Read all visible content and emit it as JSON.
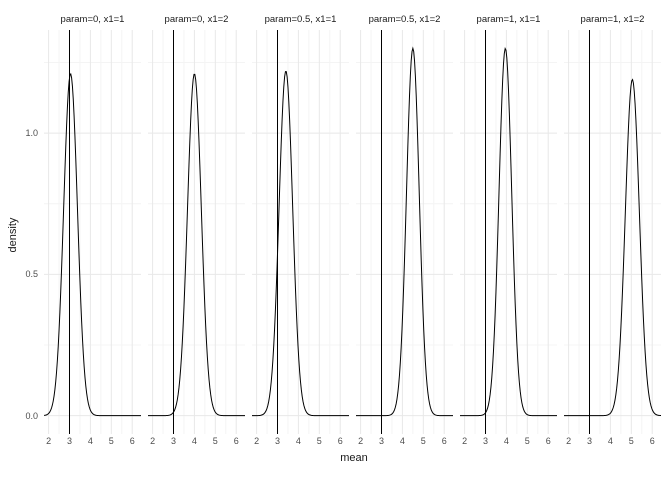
{
  "chart_data": {
    "type": "line",
    "title": "",
    "xlabel": "mean",
    "ylabel": "density",
    "x_ticks": [
      2,
      3,
      4,
      5,
      6
    ],
    "x_tick_labels": [
      "2",
      "3",
      "4",
      "5",
      "6"
    ],
    "x_minor": [
      2.5,
      3.5,
      4.5,
      5.5
    ],
    "y_ticks": [
      0.0,
      0.5,
      1.0
    ],
    "y_tick_labels": [
      "0.0",
      "0.5",
      "1.0"
    ],
    "y_minor": [
      0.25,
      0.75,
      1.25
    ],
    "xlim": [
      1.78,
      6.42
    ],
    "ylim": [
      -0.065,
      1.365
    ],
    "grid": true,
    "legend": "none",
    "vline_x": 3,
    "curve_color": "#000000",
    "major_grid_color": "#e8e8e8",
    "minor_grid_color": "#f4f4f4",
    "panels": [
      {
        "label": "param=0, x1=1",
        "mean": 3.05,
        "sd": 0.33,
        "peak": 1.21
      },
      {
        "label": "param=0, x1=2",
        "mean": 4.0,
        "sd": 0.33,
        "peak": 1.21
      },
      {
        "label": "param=0.5, x1=1",
        "mean": 3.4,
        "sd": 0.325,
        "peak": 1.22
      },
      {
        "label": "param=0.5, x1=2",
        "mean": 4.5,
        "sd": 0.305,
        "peak": 1.3
      },
      {
        "label": "param=1, x1=1",
        "mean": 3.95,
        "sd": 0.305,
        "peak": 1.3
      },
      {
        "label": "param=1, x1=2",
        "mean": 5.05,
        "sd": 0.335,
        "peak": 1.19
      }
    ]
  }
}
